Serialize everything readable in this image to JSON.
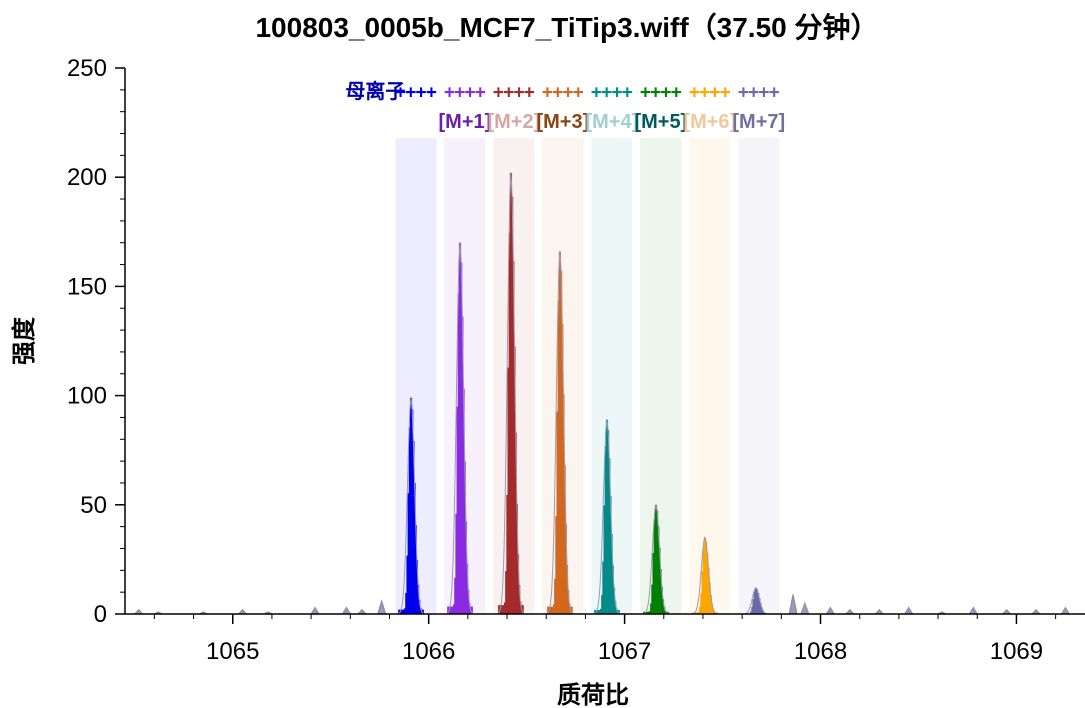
{
  "chart_data": {
    "type": "bar",
    "title": "100803_0005b_MCF7_TiTip3.wiff（37.50 分钟）",
    "xlabel": "质荷比",
    "ylabel": "强度",
    "xlim": [
      1064.45,
      1069.35
    ],
    "ylim": [
      0,
      250
    ],
    "x_ticks": [
      1065,
      1066,
      1067,
      1068,
      1069
    ],
    "y_ticks": [
      0,
      50,
      100,
      150,
      200,
      250
    ],
    "grid": false,
    "legend": "none",
    "series": [
      {
        "name": "母离子",
        "color": "#0000ee",
        "window": [
          1065.83,
          1066.04
        ],
        "peak_mz": 1065.91,
        "peak_intensity": 99
      },
      {
        "name": "[M+1]",
        "color": "#8a2be2",
        "window": [
          1066.08,
          1066.29
        ],
        "peak_mz": 1066.16,
        "peak_intensity": 170
      },
      {
        "name": "[M+2]",
        "color": "#a52a2a",
        "window": [
          1066.33,
          1066.54
        ],
        "peak_mz": 1066.42,
        "peak_intensity": 202
      },
      {
        "name": "[M+3]",
        "color": "#d2691e",
        "window": [
          1066.58,
          1066.79
        ],
        "peak_mz": 1066.67,
        "peak_intensity": 166
      },
      {
        "name": "[M+4]",
        "color": "#008b8b",
        "window": [
          1066.83,
          1067.04
        ],
        "peak_mz": 1066.91,
        "peak_intensity": 89
      },
      {
        "name": "[M+5]",
        "color": "#008000",
        "window": [
          1067.08,
          1067.29
        ],
        "peak_mz": 1067.16,
        "peak_intensity": 50
      },
      {
        "name": "[M+6]",
        "color": "#ffa500",
        "window": [
          1067.33,
          1067.54
        ],
        "peak_mz": 1067.41,
        "peak_intensity": 35
      },
      {
        "name": "[M+7]",
        "color": "#6a6aaa",
        "window": [
          1067.58,
          1067.79
        ],
        "peak_mz": 1067.67,
        "peak_intensity": 12
      }
    ],
    "background_noise": [
      {
        "x": 1064.52,
        "y": 2
      },
      {
        "x": 1064.62,
        "y": 1
      },
      {
        "x": 1064.85,
        "y": 1
      },
      {
        "x": 1065.05,
        "y": 2
      },
      {
        "x": 1065.18,
        "y": 1
      },
      {
        "x": 1065.42,
        "y": 3
      },
      {
        "x": 1065.58,
        "y": 3
      },
      {
        "x": 1065.66,
        "y": 2
      },
      {
        "x": 1065.76,
        "y": 6
      },
      {
        "x": 1067.86,
        "y": 9
      },
      {
        "x": 1067.92,
        "y": 5
      },
      {
        "x": 1068.05,
        "y": 3
      },
      {
        "x": 1068.15,
        "y": 2
      },
      {
        "x": 1068.3,
        "y": 2
      },
      {
        "x": 1068.45,
        "y": 3
      },
      {
        "x": 1068.62,
        "y": 1
      },
      {
        "x": 1068.78,
        "y": 3
      },
      {
        "x": 1068.95,
        "y": 2
      },
      {
        "x": 1069.1,
        "y": 2
      },
      {
        "x": 1069.25,
        "y": 3
      }
    ],
    "annotations": [
      {
        "text": "母离子",
        "color": "#0000aa"
      },
      {
        "text": "[M+1]",
        "color": "#6a1fa8"
      },
      {
        "text": "[M+2]",
        "color": "#d9a6a6"
      },
      {
        "text": "[M+3]",
        "color": "#8b4513"
      },
      {
        "text": "[M+4]",
        "color": "#9fcfcf"
      },
      {
        "text": "[M+5]",
        "color": "#005a5a"
      },
      {
        "text": "[M+6]",
        "color": "#f2c79a"
      },
      {
        "text": "[M+7]",
        "color": "#7070a0"
      }
    ],
    "plus_marker": "+"
  }
}
